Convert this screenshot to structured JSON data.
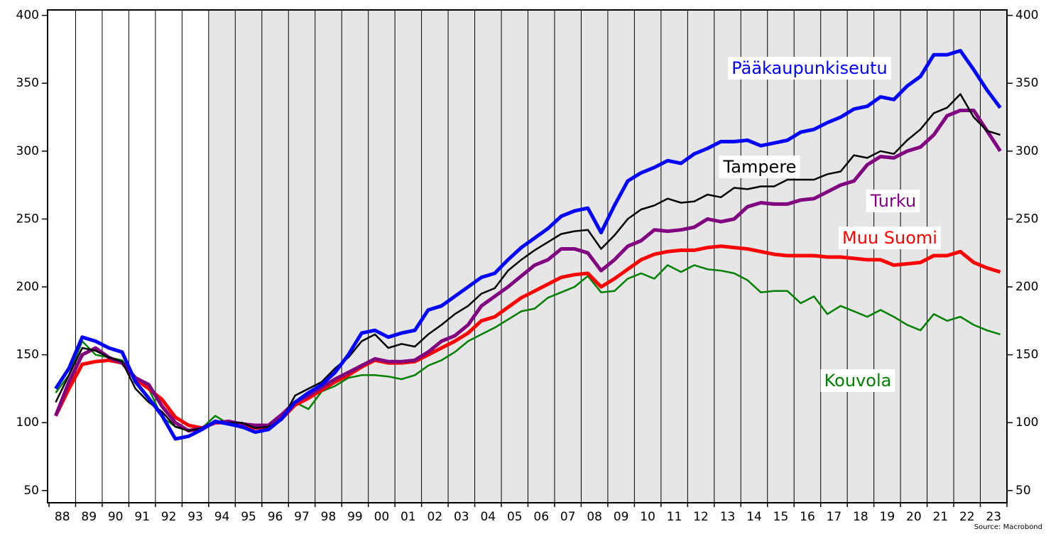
{
  "chart_data": {
    "type": "line",
    "source": "Source: Macrobond",
    "categories": [
      "88",
      null,
      "89",
      null,
      "90",
      null,
      "91",
      null,
      "92",
      null,
      "93",
      null,
      "94",
      null,
      "95",
      null,
      "96",
      null,
      "97",
      null,
      "98",
      null,
      "99",
      null,
      "00",
      null,
      "01",
      null,
      "02",
      null,
      "03",
      null,
      "04",
      null,
      "05",
      null,
      "06",
      null,
      "07",
      null,
      "08",
      null,
      "09",
      null,
      "10",
      null,
      "11",
      null,
      "12",
      null,
      "13",
      null,
      "14",
      null,
      "15",
      null,
      "16",
      null,
      "17",
      null,
      "18",
      null,
      "19",
      null,
      "20",
      null,
      "21",
      null,
      "22",
      null,
      "23",
      null
    ],
    "series": [
      {
        "name": "Pääkaupunkiseutu",
        "color": "#0000ff",
        "values": [
          125,
          140,
          163,
          160,
          155,
          152,
          130,
          118,
          105,
          88,
          90,
          95,
          101,
          99,
          97,
          93,
          95,
          103,
          115,
          122,
          128,
          137,
          150,
          166,
          168,
          163,
          166,
          168,
          183,
          186,
          193,
          200,
          207,
          210,
          220,
          229,
          236,
          243,
          252,
          256,
          258,
          240,
          260,
          278,
          284,
          288,
          293,
          291,
          298,
          302,
          307,
          307,
          308,
          304,
          306,
          308,
          314,
          316,
          321,
          325,
          331,
          333,
          340,
          338,
          348,
          355,
          371,
          371,
          374,
          360,
          345,
          332
        ]
      },
      {
        "name": "Tampere",
        "color": "#000000",
        "values": [
          115,
          135,
          155,
          153,
          148,
          145,
          125,
          115,
          108,
          97,
          94,
          96,
          101,
          100,
          100,
          96,
          97,
          102,
          120,
          125,
          130,
          140,
          148,
          160,
          165,
          155,
          158,
          156,
          165,
          172,
          180,
          186,
          195,
          199,
          212,
          220,
          227,
          233,
          239,
          241,
          242,
          228,
          238,
          250,
          257,
          260,
          265,
          262,
          263,
          268,
          266,
          273,
          272,
          274,
          274,
          279,
          279,
          279,
          283,
          285,
          297,
          295,
          300,
          298,
          308,
          316,
          328,
          332,
          342,
          325,
          315,
          312
        ]
      },
      {
        "name": "Turku",
        "color": "#800080",
        "values": [
          105,
          130,
          150,
          155,
          148,
          144,
          133,
          128,
          112,
          100,
          94,
          96,
          100,
          101,
          99,
          98,
          98,
          106,
          115,
          120,
          126,
          132,
          137,
          142,
          147,
          145,
          145,
          146,
          152,
          160,
          164,
          172,
          186,
          193,
          200,
          208,
          216,
          220,
          228,
          228,
          225,
          212,
          220,
          230,
          234,
          242,
          241,
          242,
          244,
          250,
          248,
          250,
          259,
          262,
          261,
          261,
          264,
          265,
          270,
          275,
          278,
          290,
          296,
          295,
          300,
          303,
          312,
          326,
          330,
          330,
          315,
          300
        ]
      },
      {
        "name": "Muu Suomi",
        "color": "#ff0000",
        "values": [
          105,
          125,
          143,
          145,
          146,
          144,
          132,
          125,
          117,
          104,
          98,
          96,
          100,
          100,
          98,
          96,
          97,
          103,
          113,
          118,
          124,
          130,
          135,
          141,
          146,
          144,
          144,
          145,
          150,
          155,
          160,
          166,
          175,
          178,
          185,
          192,
          197,
          202,
          207,
          209,
          210,
          200,
          206,
          213,
          220,
          224,
          226,
          227,
          227,
          229,
          230,
          229,
          228,
          226,
          224,
          223,
          223,
          223,
          222,
          222,
          221,
          220,
          220,
          216,
          217,
          218,
          223,
          223,
          226,
          218,
          214,
          211
        ]
      },
      {
        "name": "Kouvola",
        "color": "#008000",
        "values": [
          122,
          135,
          160,
          150,
          148,
          146,
          133,
          125,
          104,
          97,
          95,
          96,
          105,
          99,
          96,
          96,
          95,
          102,
          115,
          110,
          123,
          127,
          133,
          135,
          135,
          134,
          132,
          135,
          142,
          146,
          152,
          160,
          165,
          170,
          176,
          182,
          184,
          192,
          196,
          200,
          208,
          196,
          197,
          206,
          210,
          206,
          216,
          211,
          216,
          213,
          212,
          210,
          205,
          196,
          197,
          197,
          188,
          193,
          180,
          186,
          182,
          178,
          183,
          178,
          172,
          168,
          180,
          175,
          178,
          172,
          168,
          165
        ]
      }
    ],
    "ylim": [
      41,
      404
    ],
    "yticks": [
      50,
      100,
      150,
      200,
      250,
      300,
      350,
      400
    ],
    "y2lim": [
      41,
      404
    ],
    "y2ticks": [
      50,
      100,
      150,
      200,
      250,
      300,
      350,
      400
    ],
    "grid": true
  }
}
